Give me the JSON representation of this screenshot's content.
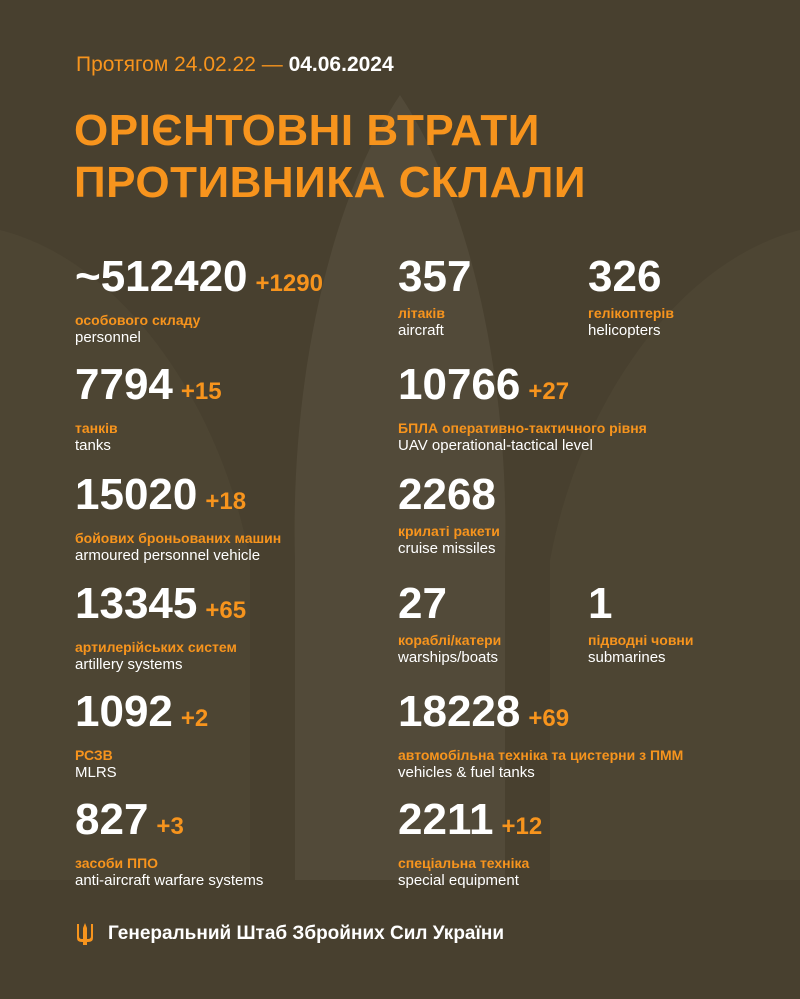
{
  "header": {
    "period_prefix": "Протягом 24.02.22 —",
    "date": "04.06.2024",
    "title_line1": "ОРІЄНТОВНІ ВТРАТИ",
    "title_line2": "ПРОТИВНИКА СКЛАЛИ"
  },
  "stats": [
    {
      "value": "~512420",
      "delta": "+1290",
      "ua": "особового складу",
      "en": "personnel"
    },
    {
      "value": "357",
      "delta": "",
      "ua": "літаків",
      "en": "aircraft"
    },
    {
      "value": "326",
      "delta": "",
      "ua": "гелікоптерів",
      "en": "helicopters"
    },
    {
      "value": "7794",
      "delta": "+15",
      "ua": "танків",
      "en": "tanks"
    },
    {
      "value": "10766",
      "delta": "+27",
      "ua": "БПЛА оперативно-тактичного рівня",
      "en": "UAV operational-tactical level"
    },
    {
      "value": "15020",
      "delta": "+18",
      "ua": "бойових броньованих машин",
      "en": "armoured personnel vehicle"
    },
    {
      "value": "2268",
      "delta": "",
      "ua": "крилаті ракети",
      "en": "cruise missiles"
    },
    {
      "value": "13345",
      "delta": "+65",
      "ua": "артилерійських систем",
      "en": "artillery systems"
    },
    {
      "value": "27",
      "delta": "",
      "ua": "кораблі/катери",
      "en": "warships/boats"
    },
    {
      "value": "1",
      "delta": "",
      "ua": "підводні човни",
      "en": "submarines"
    },
    {
      "value": "1092",
      "delta": "+2",
      "ua": "РСЗВ",
      "en": "MLRS"
    },
    {
      "value": "18228",
      "delta": "+69",
      "ua": "автомобільна техніка та цистерни з ПММ",
      "en": "vehicles & fuel tanks"
    },
    {
      "value": "827",
      "delta": "+3",
      "ua": "засоби ППО",
      "en": "anti-aircraft warfare systems"
    },
    {
      "value": "2211",
      "delta": "+12",
      "ua": "спеціальна техніка",
      "en": "special equipment"
    }
  ],
  "footer": {
    "text": "Генеральний Штаб Збройних Сил України",
    "icon": "trident-icon"
  },
  "colors": {
    "background": "#48402f",
    "accent": "#f7941d",
    "text": "#ffffff"
  }
}
